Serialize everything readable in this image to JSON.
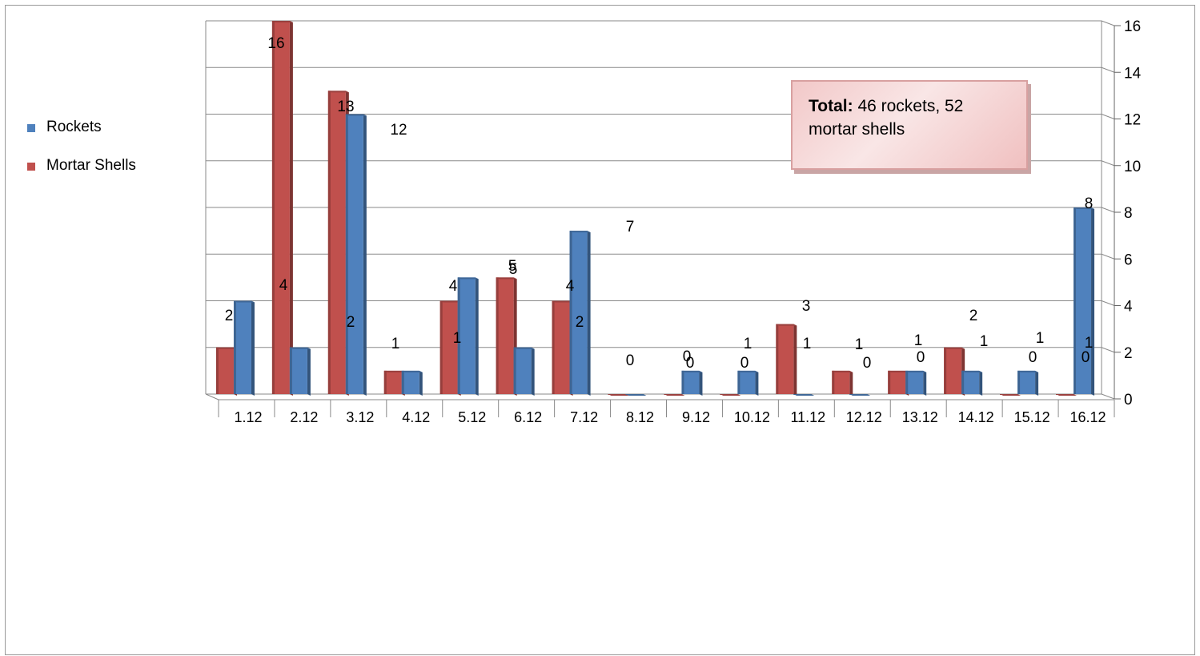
{
  "chart_data": {
    "type": "bar",
    "categories": [
      "1.12",
      "2.12",
      "3.12",
      "4.12",
      "5.12",
      "6.12",
      "7.12",
      "8.12",
      "9.12",
      "10.12",
      "11.12",
      "12.12",
      "13.12",
      "14.12",
      "15.12",
      "16.12"
    ],
    "series": [
      {
        "name": "Rockets",
        "color": "#4f81bd",
        "values": [
          4,
          2,
          12,
          1,
          5,
          2,
          7,
          0,
          1,
          1,
          0,
          0,
          1,
          1,
          1,
          8
        ]
      },
      {
        "name": "Mortar Shells",
        "color": "#c0504d",
        "values": [
          2,
          16,
          13,
          1,
          4,
          5,
          4,
          0,
          0,
          0,
          3,
          1,
          1,
          2,
          0,
          0
        ]
      }
    ],
    "data_labels": [
      {
        "text": "2"
      },
      {
        "text": "16"
      },
      {
        "text": "4"
      },
      {
        "text": "13"
      },
      {
        "text": "12"
      },
      {
        "text": "2"
      },
      {
        "text": "1"
      },
      {
        "text": "4"
      },
      {
        "text": "1"
      },
      {
        "text": "5"
      },
      {
        "text": "5"
      },
      {
        "text": "4"
      },
      {
        "text": "2"
      },
      {
        "text": "7"
      },
      {
        "text": "0"
      },
      {
        "text": "0"
      },
      {
        "text": "0"
      },
      {
        "text": "1"
      },
      {
        "text": "0"
      },
      {
        "text": "3"
      },
      {
        "text": "1"
      },
      {
        "text": "1"
      },
      {
        "text": "0"
      },
      {
        "text": "1"
      },
      {
        "text": "0"
      },
      {
        "text": "2"
      },
      {
        "text": "1"
      },
      {
        "text": "1"
      },
      {
        "text": "0"
      },
      {
        "text": "8"
      },
      {
        "text": "1"
      },
      {
        "text": "0"
      }
    ],
    "ylim": [
      0,
      16
    ],
    "yticks": [
      0,
      2,
      4,
      6,
      8,
      10,
      12,
      14,
      16
    ],
    "y_axis_side": "right",
    "grid": true,
    "legend_position": "left",
    "annotation": {
      "bold": "Total:",
      "text": " 46 rockets, 52 mortar shells"
    }
  }
}
